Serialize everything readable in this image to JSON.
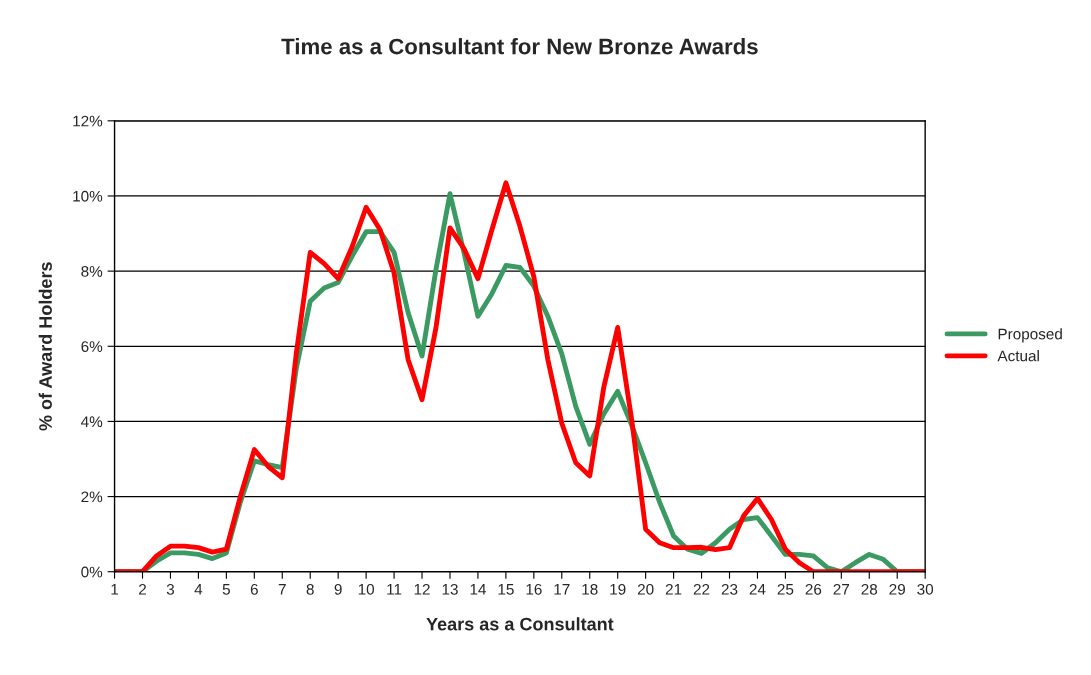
{
  "chart_data": {
    "type": "line",
    "title": "Time as a Consultant for New Bronze Awards",
    "xlabel": "Years as a Consultant",
    "ylabel": "% of Award Holders",
    "x": [
      1,
      1.5,
      2,
      2.5,
      3,
      3.5,
      4,
      4.5,
      5,
      5.5,
      6,
      6.5,
      7,
      7.5,
      8,
      8.5,
      9,
      9.5,
      10,
      10.5,
      11,
      11.5,
      12,
      12.5,
      13,
      13.5,
      14,
      14.5,
      15,
      15.5,
      16,
      16.5,
      17,
      17.5,
      18,
      18.5,
      19,
      19.5,
      20,
      20.5,
      21,
      21.5,
      22,
      22.5,
      23,
      23.5,
      24,
      24.5,
      25,
      25.5,
      26,
      26.5,
      27,
      27.5,
      28,
      28.5,
      29,
      29.5,
      30
    ],
    "series": [
      {
        "name": "Proposed",
        "color": "#3a9a62",
        "values": [
          0,
          0,
          0,
          0.28,
          0.5,
          0.5,
          0.46,
          0.35,
          0.5,
          1.85,
          2.95,
          2.85,
          2.77,
          5.4,
          7.2,
          7.55,
          7.7,
          8.4,
          9.05,
          9.05,
          8.5,
          6.9,
          5.74,
          8.05,
          10.06,
          8.5,
          6.8,
          7.4,
          8.15,
          8.1,
          7.6,
          6.8,
          5.8,
          4.4,
          3.39,
          4.2,
          4.8,
          3.9,
          2.9,
          1.85,
          0.95,
          0.6,
          0.49,
          0.77,
          1.13,
          1.39,
          1.44,
          0.95,
          0.46,
          0.46,
          0.42,
          0.11,
          0,
          0.24,
          0.46,
          0.33,
          0,
          0,
          0
        ]
      },
      {
        "name": "Actual",
        "color": "#ff0000",
        "values": [
          0,
          0,
          0,
          0.42,
          0.68,
          0.68,
          0.64,
          0.52,
          0.6,
          2.0,
          3.25,
          2.8,
          2.5,
          5.8,
          8.5,
          8.2,
          7.8,
          8.65,
          9.7,
          9.1,
          7.95,
          5.65,
          4.58,
          6.5,
          9.15,
          8.6,
          7.8,
          9.1,
          10.35,
          9.2,
          7.85,
          5.65,
          3.95,
          2.9,
          2.55,
          4.9,
          6.5,
          4.05,
          1.13,
          0.77,
          0.64,
          0.64,
          0.65,
          0.59,
          0.64,
          1.48,
          1.95,
          1.39,
          0.6,
          0.24,
          0,
          0,
          0,
          0,
          0,
          0,
          0,
          0,
          0
        ]
      }
    ],
    "xlim": [
      1,
      30
    ],
    "xticks": [
      1,
      2,
      3,
      4,
      5,
      6,
      7,
      8,
      9,
      10,
      11,
      12,
      13,
      14,
      15,
      16,
      17,
      18,
      19,
      20,
      21,
      22,
      23,
      24,
      25,
      26,
      27,
      28,
      29,
      30
    ],
    "ylim": [
      0,
      12
    ],
    "yticks": [
      {
        "value": 0,
        "label": "0%"
      },
      {
        "value": 2,
        "label": "2%"
      },
      {
        "value": 4,
        "label": "4%"
      },
      {
        "value": 6,
        "label": "6%"
      },
      {
        "value": 8,
        "label": "8%"
      },
      {
        "value": 10,
        "label": "10%"
      },
      {
        "value": 12,
        "label": "12%"
      }
    ],
    "grid": "y",
    "legend": "right",
    "marker": "none",
    "line_style": "solid"
  }
}
